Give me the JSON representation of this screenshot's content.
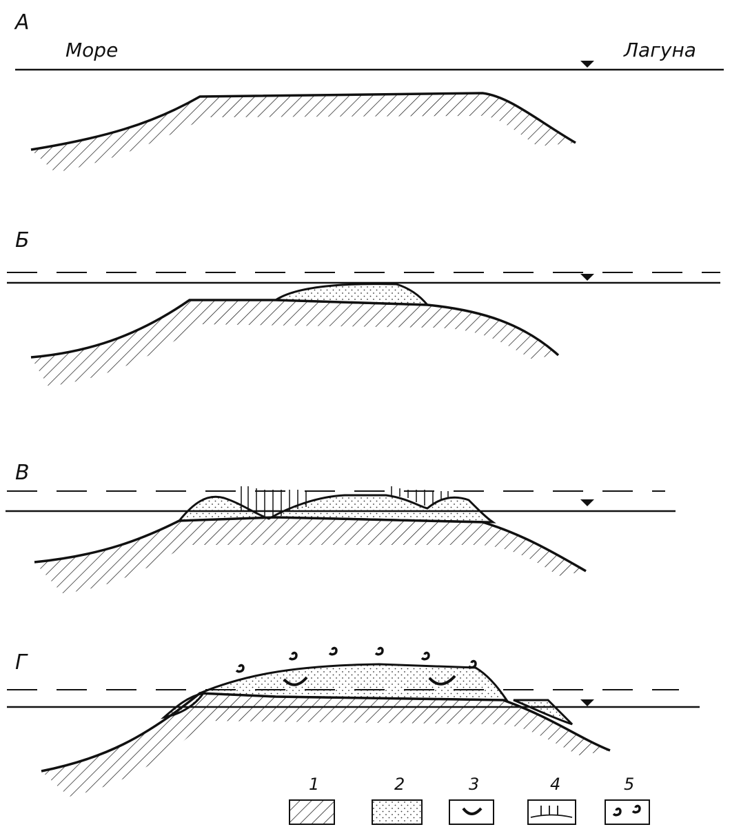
{
  "panels": [
    {
      "label": "А"
    },
    {
      "label": "Б"
    },
    {
      "label": "В"
    },
    {
      "label": "Г"
    }
  ],
  "sea_label": "Море",
  "lagoon_label": "Лагуна",
  "legend": [
    {
      "label": "1"
    },
    {
      "label": "2"
    },
    {
      "label": "3"
    },
    {
      "label": "4"
    },
    {
      "label": "5"
    }
  ]
}
